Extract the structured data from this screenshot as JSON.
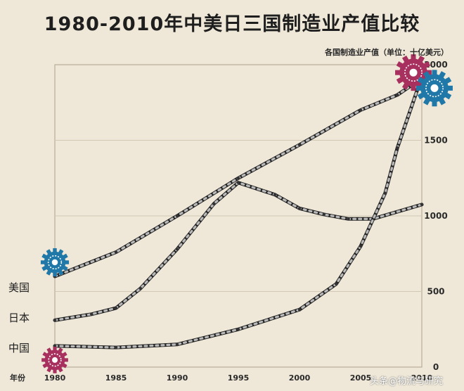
{
  "title": "1980-2010年中美日三国制造业产值比较",
  "unit_label": "各国制造业产值（单位：十亿美元）",
  "country_labels": [
    "美国",
    "日本",
    "中国"
  ],
  "watermark": "头条@物流与研究",
  "chart_data": {
    "type": "line",
    "title": "1980-2010年中美日三国制造业产值比较",
    "xlabel": "年份",
    "ylabel": "各国制造业产值（单位：十亿美元）",
    "xlim": [
      1980,
      2010
    ],
    "ylim": [
      0,
      2000
    ],
    "x_ticks": [
      1980,
      1985,
      1990,
      1995,
      2000,
      2005,
      2010
    ],
    "y_ticks": [
      0,
      500,
      1000,
      1500,
      2000
    ],
    "grid": "horizontal",
    "legend": "left",
    "series": [
      {
        "name": "美国",
        "color": "#2b2b2b",
        "x": [
          1980,
          1985,
          1990,
          1995,
          2000,
          2005,
          2008,
          2010
        ],
        "y": [
          600,
          760,
          1000,
          1250,
          1470,
          1700,
          1800,
          1910
        ]
      },
      {
        "name": "日本",
        "color": "#2b2b2b",
        "x": [
          1980,
          1983,
          1985,
          1987,
          1990,
          1993,
          1995,
          1998,
          2000,
          2002,
          2004,
          2006,
          2010
        ],
        "y": [
          310,
          350,
          390,
          520,
          780,
          1080,
          1220,
          1140,
          1050,
          1010,
          980,
          980,
          1075
        ]
      },
      {
        "name": "中国",
        "color": "#2b2b2b",
        "x": [
          1980,
          1985,
          1990,
          1995,
          2000,
          2003,
          2005,
          2007,
          2008,
          2010
        ],
        "y": [
          140,
          130,
          150,
          250,
          380,
          550,
          800,
          1150,
          1450,
          1920
        ]
      }
    ],
    "gears": [
      {
        "series": "美国",
        "year": 1980,
        "color": "#1f78a8"
      },
      {
        "series": "中国",
        "year": 1980,
        "color": "#a8305f"
      },
      {
        "series": "中国",
        "year": 2010,
        "color": "#a8305f"
      },
      {
        "series": "美国",
        "year": 2010,
        "color": "#1f78a8"
      }
    ]
  }
}
